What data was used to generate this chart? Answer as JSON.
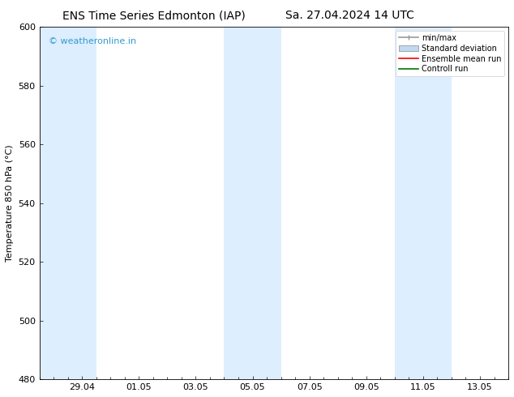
{
  "title_left": "ENS Time Series Edmonton (IAP)",
  "title_right": "Sa. 27.04.2024 14 UTC",
  "ylabel": "Temperature 850 hPa (°C)",
  "watermark": "© weatheronline.in",
  "watermark_color": "#3399cc",
  "ylim": [
    480,
    600
  ],
  "yticks": [
    480,
    500,
    520,
    540,
    560,
    580,
    600
  ],
  "xtick_labels": [
    "29.04",
    "01.05",
    "03.05",
    "05.05",
    "07.05",
    "09.05",
    "11.05",
    "13.05"
  ],
  "xtick_positions": [
    1.5,
    3.5,
    5.5,
    7.5,
    9.5,
    11.5,
    13.5,
    15.5
  ],
  "xlim_start": 0,
  "xlim_end": 16.5,
  "shaded_bands": [
    {
      "x_start": 0,
      "x_end": 2.0,
      "color": "#ddeeff"
    },
    {
      "x_start": 6.5,
      "x_end": 8.5,
      "color": "#ddeeff"
    },
    {
      "x_start": 12.5,
      "x_end": 14.5,
      "color": "#ddeeff"
    }
  ],
  "legend_items": [
    {
      "label": "min/max",
      "color": "#999999",
      "lw": 1.2,
      "style": "errorbar"
    },
    {
      "label": "Standard deviation",
      "color": "#c0d8f0",
      "lw": 6,
      "style": "band"
    },
    {
      "label": "Ensemble mean run",
      "color": "#ff0000",
      "lw": 1.2,
      "style": "line"
    },
    {
      "label": "Controll run",
      "color": "#007700",
      "lw": 1.2,
      "style": "line"
    }
  ],
  "bg_color": "#ffffff",
  "plot_bg_color": "#ffffff",
  "border_color": "#000000",
  "title_fontsize": 10,
  "ylabel_fontsize": 8,
  "tick_fontsize": 8,
  "watermark_fontsize": 8,
  "legend_fontsize": 7
}
